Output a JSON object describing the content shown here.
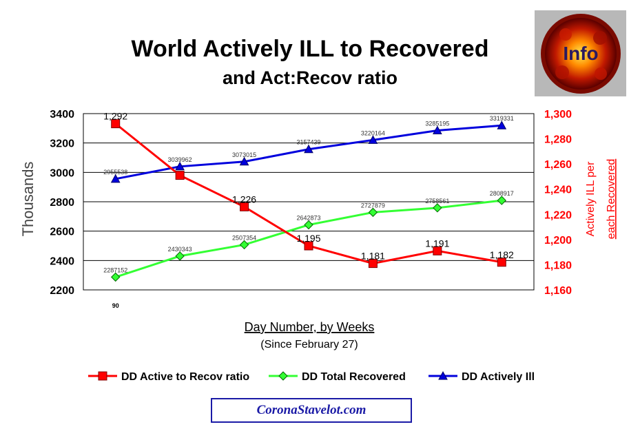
{
  "chart_data": {
    "type": "line",
    "title": "World Actively ILL to Recovered",
    "subtitle": "and Act:Recov ratio",
    "xlabel": "Day Number, by Weeks",
    "xlabel_sub": "(Since February 27)",
    "x_tick_labels": [
      "90"
    ],
    "x": [
      90,
      97,
      104,
      111,
      118,
      125,
      132
    ],
    "ylabel_left": "Thousands",
    "ylabel_right_1": "Actively ILL per",
    "ylabel_right_2": "each Recovered",
    "ylim_left": [
      2200,
      3400
    ],
    "yticks_left": [
      "2200",
      "2400",
      "2600",
      "2800",
      "3000",
      "3200",
      "3400"
    ],
    "ylim_right": [
      1.16,
      1.3
    ],
    "yticks_right": [
      "1,160",
      "1,180",
      "1,200",
      "1,220",
      "1,240",
      "1,260",
      "1,280",
      "1,300"
    ],
    "grid": "horizontal",
    "legend_position": "bottom",
    "series": [
      {
        "name": "DD Active to Recov ratio",
        "axis": "right",
        "color": "#ff0000",
        "marker": "square",
        "values": [
          1.292,
          1.251,
          1.226,
          1.195,
          1.181,
          1.191,
          1.182
        ],
        "labels": [
          "1,292",
          "",
          "1,226",
          "1,195",
          "1,181",
          "1,191",
          "1,182"
        ]
      },
      {
        "name": "DD Total Recovered",
        "axis": "left",
        "color": "#33ff33",
        "marker": "diamond",
        "values": [
          2287.152,
          2430.343,
          2507.354,
          2642.873,
          2727.879,
          2758.561,
          2808.917
        ],
        "labels": [
          "2287152",
          "2430343",
          "2507354",
          "2642873",
          "2727879",
          "2758561",
          "2808917"
        ]
      },
      {
        "name": "DD Actively Ill",
        "axis": "left",
        "color": "#0000dd",
        "marker": "triangle",
        "values": [
          2955.538,
          3039.962,
          3073.015,
          3157.439,
          3220.164,
          3285.195,
          3319.331
        ],
        "labels": [
          "2955538",
          "3039962",
          "3073015",
          "3157439",
          "3220164",
          "3285195",
          "3319331"
        ]
      }
    ]
  },
  "logo": {
    "text": "Info"
  },
  "footer": {
    "site": "CoronaStavelot.com"
  }
}
